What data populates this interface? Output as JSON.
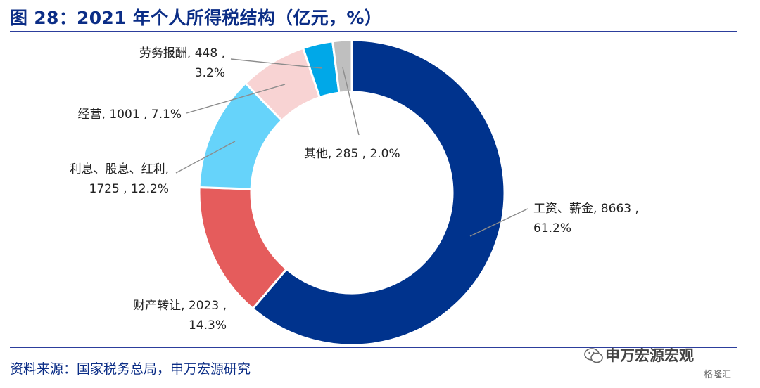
{
  "header": {
    "title": "图 28：2021 年个人所得税结构（亿元，%）"
  },
  "footer": {
    "source": "资料来源：国家税务总局，申万宏源研究",
    "watermark_brand": "申万宏源宏观",
    "watermark_logo": "格隆汇"
  },
  "chart_data": {
    "type": "pie",
    "donut": true,
    "title": "",
    "slices": [
      {
        "name": "工资、薪金",
        "value": 8663,
        "percent": 61.2,
        "color": "#00338d",
        "label_lines": [
          "工资、薪金, 8663 ,",
          "61.2%"
        ]
      },
      {
        "name": "财产转让",
        "value": 2023,
        "percent": 14.3,
        "color": "#e55c5c",
        "label_lines": [
          "财产转让, 2023 ,",
          "14.3%"
        ]
      },
      {
        "name": "利息、股息、红利",
        "value": 1725,
        "percent": 12.2,
        "color": "#66d3fa",
        "label_lines": [
          "利息、股息、红利,",
          "1725 , 12.2%"
        ]
      },
      {
        "name": "经营",
        "value": 1001,
        "percent": 7.1,
        "color": "#f8d3d3",
        "label_lines": [
          "经营, 1001 , 7.1%"
        ]
      },
      {
        "name": "劳务报酬",
        "value": 448,
        "percent": 3.2,
        "color": "#00a8e8",
        "label_lines": [
          "劳务报酬, 448 ,",
          "3.2%"
        ]
      },
      {
        "name": "其他",
        "value": 285,
        "percent": 2.0,
        "color": "#bfbfbf",
        "label_lines": [
          "其他, 285 , 2.0%"
        ]
      }
    ]
  }
}
